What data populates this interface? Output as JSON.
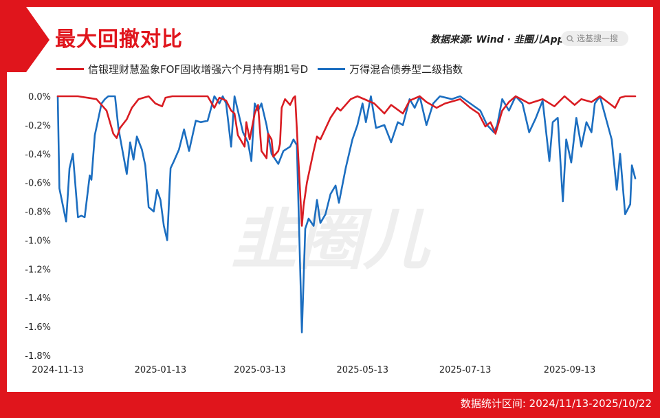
{
  "header": {
    "title": "最大回撤对比",
    "source_text": "数据来源: Wind · ",
    "brand_text": "韭圈儿App",
    "search_placeholder": "选基搜一搜"
  },
  "watermark": "韭圈儿",
  "footer": {
    "stat_range": "数据统计区间:  2024/11/13-2025/10/22"
  },
  "colors": {
    "red": "#e0151c",
    "blue": "#1f6bb8",
    "fund_line": "#d91c22",
    "index_line": "#1c6ec0"
  },
  "chart_data": {
    "type": "line",
    "title": "最大回撤对比",
    "xlabel": "",
    "ylabel": "",
    "ylim": [
      -1.8,
      0.0
    ],
    "y_ticks": [
      "0.0%",
      "-0.2%",
      "-0.4%",
      "-0.6%",
      "-0.8%",
      "-1.0%",
      "-1.2%",
      "-1.4%",
      "-1.6%",
      "-1.8%"
    ],
    "x_ticks": [
      "2024-11-13",
      "2025-01-13",
      "2025-03-13",
      "2025-05-13",
      "2025-07-13",
      "2025-09-13"
    ],
    "x_range": [
      "2024-11-13",
      "2025-10-22"
    ],
    "grid": false,
    "legend_position": "top-left",
    "series": [
      {
        "name": "信银理财慧盈象FOF固收增强六个月持有期1号D",
        "color": "#d91c22",
        "points": [
          [
            "2024-11-13",
            0.0
          ],
          [
            "2024-11-25",
            0.0
          ],
          [
            "2024-12-06",
            -0.02
          ],
          [
            "2024-12-12",
            -0.1
          ],
          [
            "2024-12-16",
            -0.26
          ],
          [
            "2024-12-18",
            -0.29
          ],
          [
            "2024-12-20",
            -0.22
          ],
          [
            "2024-12-24",
            -0.16
          ],
          [
            "2024-12-27",
            -0.08
          ],
          [
            "2024-12-31",
            -0.02
          ],
          [
            "2025-01-06",
            0.0
          ],
          [
            "2025-01-10",
            -0.05
          ],
          [
            "2025-01-14",
            -0.07
          ],
          [
            "2025-01-16",
            -0.01
          ],
          [
            "2025-01-20",
            0.0
          ],
          [
            "2025-02-10",
            0.0
          ],
          [
            "2025-02-14",
            -0.08
          ],
          [
            "2025-02-17",
            -0.01
          ],
          [
            "2025-02-21",
            -0.03
          ],
          [
            "2025-02-24",
            -0.1
          ],
          [
            "2025-02-26",
            -0.12
          ],
          [
            "2025-02-28",
            -0.27
          ],
          [
            "2025-03-04",
            -0.35
          ],
          [
            "2025-03-05",
            -0.18
          ],
          [
            "2025-03-07",
            -0.3
          ],
          [
            "2025-03-10",
            -0.12
          ],
          [
            "2025-03-12",
            -0.06
          ],
          [
            "2025-03-14",
            -0.38
          ],
          [
            "2025-03-17",
            -0.43
          ],
          [
            "2025-03-18",
            -0.26
          ],
          [
            "2025-03-20",
            -0.3
          ],
          [
            "2025-03-21",
            -0.42
          ],
          [
            "2025-03-24",
            -0.38
          ],
          [
            "2025-03-25",
            -0.33
          ],
          [
            "2025-03-26",
            -0.08
          ],
          [
            "2025-03-28",
            -0.02
          ],
          [
            "2025-03-31",
            -0.06
          ],
          [
            "2025-04-02",
            -0.01
          ],
          [
            "2025-04-03",
            0.0
          ],
          [
            "2025-04-07",
            -0.9
          ],
          [
            "2025-04-08",
            -0.76
          ],
          [
            "2025-04-10",
            -0.6
          ],
          [
            "2025-04-14",
            -0.38
          ],
          [
            "2025-04-16",
            -0.28
          ],
          [
            "2025-04-18",
            -0.3
          ],
          [
            "2025-04-22",
            -0.2
          ],
          [
            "2025-04-24",
            -0.15
          ],
          [
            "2025-04-28",
            -0.08
          ],
          [
            "2025-04-30",
            -0.1
          ],
          [
            "2025-05-06",
            -0.02
          ],
          [
            "2025-05-10",
            0.0
          ],
          [
            "2025-05-20",
            -0.05
          ],
          [
            "2025-05-26",
            -0.12
          ],
          [
            "2025-05-30",
            -0.06
          ],
          [
            "2025-06-06",
            -0.12
          ],
          [
            "2025-06-10",
            -0.03
          ],
          [
            "2025-06-16",
            0.0
          ],
          [
            "2025-06-20",
            -0.04
          ],
          [
            "2025-06-26",
            -0.08
          ],
          [
            "2025-07-01",
            -0.05
          ],
          [
            "2025-07-10",
            -0.02
          ],
          [
            "2025-07-16",
            -0.08
          ],
          [
            "2025-07-21",
            -0.12
          ],
          [
            "2025-07-25",
            -0.21
          ],
          [
            "2025-07-28",
            -0.18
          ],
          [
            "2025-07-31",
            -0.26
          ],
          [
            "2025-08-04",
            -0.1
          ],
          [
            "2025-08-08",
            -0.04
          ],
          [
            "2025-08-12",
            0.0
          ],
          [
            "2025-08-20",
            -0.05
          ],
          [
            "2025-08-28",
            -0.02
          ],
          [
            "2025-09-04",
            -0.07
          ],
          [
            "2025-09-10",
            0.0
          ],
          [
            "2025-09-16",
            -0.06
          ],
          [
            "2025-09-20",
            -0.02
          ],
          [
            "2025-09-26",
            -0.04
          ],
          [
            "2025-10-01",
            0.0
          ],
          [
            "2025-10-10",
            -0.08
          ],
          [
            "2025-10-13",
            -0.01
          ],
          [
            "2025-10-16",
            0.0
          ],
          [
            "2025-10-22",
            0.0
          ]
        ]
      },
      {
        "name": "万得混合债券型二级指数",
        "color": "#1c6ec0",
        "points": [
          [
            "2024-11-13",
            0.0
          ],
          [
            "2024-11-14",
            -0.64
          ],
          [
            "2024-11-18",
            -0.87
          ],
          [
            "2024-11-20",
            -0.5
          ],
          [
            "2024-11-22",
            -0.4
          ],
          [
            "2024-11-25",
            -0.84
          ],
          [
            "2024-11-27",
            -0.83
          ],
          [
            "2024-11-29",
            -0.84
          ],
          [
            "2024-12-02",
            -0.55
          ],
          [
            "2024-12-03",
            -0.58
          ],
          [
            "2024-12-05",
            -0.27
          ],
          [
            "2024-12-09",
            -0.05
          ],
          [
            "2024-12-11",
            -0.02
          ],
          [
            "2024-12-13",
            0.0
          ],
          [
            "2024-12-17",
            0.0
          ],
          [
            "2024-12-19",
            -0.22
          ],
          [
            "2024-12-21",
            -0.35
          ],
          [
            "2024-12-24",
            -0.54
          ],
          [
            "2024-12-26",
            -0.32
          ],
          [
            "2024-12-28",
            -0.44
          ],
          [
            "2024-12-30",
            -0.28
          ],
          [
            "2025-01-02",
            -0.37
          ],
          [
            "2025-01-04",
            -0.48
          ],
          [
            "2025-01-06",
            -0.77
          ],
          [
            "2025-01-09",
            -0.8
          ],
          [
            "2025-01-11",
            -0.65
          ],
          [
            "2025-01-13",
            -0.72
          ],
          [
            "2025-01-15",
            -0.9
          ],
          [
            "2025-01-17",
            -1.0
          ],
          [
            "2025-01-19",
            -0.5
          ],
          [
            "2025-01-21",
            -0.45
          ],
          [
            "2025-01-24",
            -0.37
          ],
          [
            "2025-01-27",
            -0.23
          ],
          [
            "2025-01-30",
            -0.38
          ],
          [
            "2025-02-03",
            -0.17
          ],
          [
            "2025-02-06",
            -0.18
          ],
          [
            "2025-02-10",
            -0.17
          ],
          [
            "2025-02-14",
            0.0
          ],
          [
            "2025-02-17",
            -0.05
          ],
          [
            "2025-02-19",
            0.0
          ],
          [
            "2025-02-21",
            -0.05
          ],
          [
            "2025-02-24",
            -0.35
          ],
          [
            "2025-02-26",
            0.0
          ],
          [
            "2025-03-03",
            -0.25
          ],
          [
            "2025-03-06",
            -0.32
          ],
          [
            "2025-03-08",
            -0.45
          ],
          [
            "2025-03-10",
            -0.05
          ],
          [
            "2025-03-12",
            -0.1
          ],
          [
            "2025-03-14",
            -0.05
          ],
          [
            "2025-03-17",
            -0.2
          ],
          [
            "2025-03-20",
            -0.4
          ],
          [
            "2025-03-24",
            -0.47
          ],
          [
            "2025-03-27",
            -0.38
          ],
          [
            "2025-03-31",
            -0.35
          ],
          [
            "2025-04-02",
            -0.3
          ],
          [
            "2025-04-04",
            -0.34
          ],
          [
            "2025-04-07",
            -1.64
          ],
          [
            "2025-04-09",
            -0.92
          ],
          [
            "2025-04-11",
            -0.85
          ],
          [
            "2025-04-14",
            -0.9
          ],
          [
            "2025-04-16",
            -0.72
          ],
          [
            "2025-04-18",
            -0.88
          ],
          [
            "2025-04-21",
            -0.82
          ],
          [
            "2025-04-24",
            -0.68
          ],
          [
            "2025-04-27",
            -0.62
          ],
          [
            "2025-04-29",
            -0.74
          ],
          [
            "2025-05-03",
            -0.5
          ],
          [
            "2025-05-07",
            -0.3
          ],
          [
            "2025-05-10",
            -0.2
          ],
          [
            "2025-05-13",
            -0.05
          ],
          [
            "2025-05-15",
            -0.18
          ],
          [
            "2025-05-18",
            0.0
          ],
          [
            "2025-05-21",
            -0.22
          ],
          [
            "2025-05-26",
            -0.2
          ],
          [
            "2025-05-30",
            -0.32
          ],
          [
            "2025-06-03",
            -0.18
          ],
          [
            "2025-06-06",
            -0.2
          ],
          [
            "2025-06-10",
            -0.02
          ],
          [
            "2025-06-13",
            -0.08
          ],
          [
            "2025-06-16",
            0.0
          ],
          [
            "2025-06-20",
            -0.2
          ],
          [
            "2025-06-24",
            -0.05
          ],
          [
            "2025-06-28",
            0.0
          ],
          [
            "2025-07-05",
            -0.02
          ],
          [
            "2025-07-10",
            0.0
          ],
          [
            "2025-07-16",
            -0.05
          ],
          [
            "2025-07-22",
            -0.1
          ],
          [
            "2025-07-26",
            -0.2
          ],
          [
            "2025-07-30",
            -0.25
          ],
          [
            "2025-08-01",
            -0.2
          ],
          [
            "2025-08-04",
            -0.02
          ],
          [
            "2025-08-08",
            -0.1
          ],
          [
            "2025-08-12",
            0.0
          ],
          [
            "2025-08-16",
            -0.05
          ],
          [
            "2025-08-18",
            -0.15
          ],
          [
            "2025-08-20",
            -0.25
          ],
          [
            "2025-08-24",
            -0.15
          ],
          [
            "2025-08-28",
            -0.03
          ],
          [
            "2025-09-01",
            -0.45
          ],
          [
            "2025-09-03",
            -0.18
          ],
          [
            "2025-09-06",
            -0.15
          ],
          [
            "2025-09-09",
            -0.73
          ],
          [
            "2025-09-11",
            -0.3
          ],
          [
            "2025-09-14",
            -0.46
          ],
          [
            "2025-09-17",
            -0.15
          ],
          [
            "2025-09-20",
            -0.35
          ],
          [
            "2025-09-23",
            -0.18
          ],
          [
            "2025-09-26",
            -0.25
          ],
          [
            "2025-09-28",
            -0.05
          ],
          [
            "2025-10-01",
            0.0
          ],
          [
            "2025-10-08",
            -0.3
          ],
          [
            "2025-10-11",
            -0.65
          ],
          [
            "2025-10-13",
            -0.4
          ],
          [
            "2025-10-16",
            -0.82
          ],
          [
            "2025-10-19",
            -0.75
          ],
          [
            "2025-10-20",
            -0.48
          ],
          [
            "2025-10-22",
            -0.57
          ]
        ]
      }
    ]
  }
}
